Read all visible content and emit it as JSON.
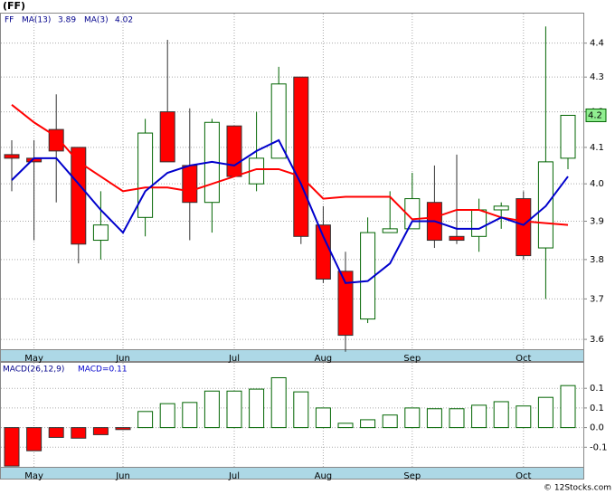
{
  "title": "(FF)",
  "footer": "© 12Stocks.com",
  "chart_data": [
    {
      "type": "candlestick",
      "legend_symbol": "FF",
      "categories": [
        null,
        "May",
        null,
        null,
        null,
        "Jun",
        null,
        null,
        null,
        null,
        "Jul",
        null,
        null,
        null,
        "Aug",
        null,
        null,
        null,
        "Sep",
        null,
        null,
        null,
        null,
        "Oct",
        null,
        null
      ],
      "open": [
        4.08,
        4.07,
        4.15,
        4.1,
        3.85,
        null,
        3.91,
        4.2,
        4.05,
        3.95,
        4.16,
        4.0,
        4.07,
        4.3,
        3.89,
        3.77,
        3.65,
        3.87,
        3.88,
        3.95,
        3.86,
        3.86,
        3.93,
        3.96,
        3.83,
        4.07
      ],
      "high": [
        4.12,
        4.12,
        4.25,
        4.1,
        3.98,
        null,
        4.18,
        4.41,
        4.21,
        4.18,
        4.16,
        4.2,
        4.33,
        4.3,
        3.94,
        3.82,
        3.91,
        3.98,
        4.03,
        4.05,
        4.08,
        3.96,
        3.95,
        3.98,
        4.45,
        4.19
      ],
      "low": [
        3.98,
        3.85,
        3.95,
        3.79,
        3.8,
        null,
        3.86,
        4.06,
        3.85,
        3.87,
        4.02,
        3.98,
        4.07,
        3.84,
        3.74,
        3.57,
        3.64,
        3.87,
        3.88,
        3.83,
        3.84,
        3.82,
        3.88,
        3.8,
        3.7,
        4.04
      ],
      "close": [
        4.07,
        4.06,
        4.09,
        3.84,
        3.89,
        null,
        4.14,
        4.06,
        3.95,
        4.17,
        4.02,
        4.07,
        4.28,
        3.86,
        3.75,
        3.61,
        3.87,
        3.88,
        3.96,
        3.85,
        3.85,
        3.93,
        3.94,
        3.81,
        4.06,
        4.19
      ],
      "up_color": "#006400",
      "down_color": "#ff0000",
      "series": [
        {
          "name": "MA(13)",
          "last": 3.89,
          "color": "#ff0000",
          "values": [
            4.22,
            4.17,
            4.13,
            4.06,
            4.02,
            3.98,
            3.99,
            3.99,
            3.98,
            4.0,
            4.02,
            4.04,
            4.04,
            4.02,
            3.96,
            3.965,
            3.965,
            3.965,
            3.905,
            3.91,
            3.93,
            3.93,
            3.91,
            3.9,
            3.895,
            3.89
          ]
        },
        {
          "name": "MA(3)",
          "last": 4.02,
          "color": "#0000cc",
          "values": [
            4.01,
            4.07,
            4.07,
            4.0,
            3.93,
            3.87,
            3.98,
            4.03,
            4.05,
            4.06,
            4.05,
            4.09,
            4.12,
            4.0,
            3.86,
            3.74,
            3.745,
            3.79,
            3.9,
            3.9,
            3.88,
            3.88,
            3.91,
            3.89,
            3.94,
            4.02
          ]
        }
      ],
      "price_tag": {
        "value": 4.19,
        "label": "4.2"
      },
      "ylog": true,
      "ylim": [
        3.576,
        4.489
      ],
      "yticks": [
        3.6,
        3.7,
        3.8,
        3.9,
        {
          "value": 4.0,
          "label": "4.0"
        },
        4.1,
        4.2,
        4.3,
        4.4
      ],
      "grid": true
    },
    {
      "type": "bar",
      "title": "MACD(26,12,9)",
      "legend_label": "MACD=0.11",
      "categories": [
        null,
        "May",
        null,
        null,
        null,
        "Jun",
        null,
        null,
        null,
        null,
        "Jul",
        null,
        null,
        null,
        "Aug",
        null,
        null,
        null,
        "Sep",
        null,
        null,
        null,
        null,
        "Oct",
        null,
        null
      ],
      "values": [
        -0.098,
        -0.059,
        -0.025,
        -0.027,
        -0.018,
        -0.005,
        0.041,
        0.061,
        0.064,
        0.093,
        0.093,
        0.098,
        0.127,
        0.091,
        0.05,
        0.011,
        0.02,
        0.032,
        0.05,
        0.048,
        0.048,
        0.057,
        0.066,
        0.055,
        0.077,
        0.107
      ],
      "up_color": "#006400",
      "down_color": "#ff0000",
      "ylim": [
        -0.1,
        0.165
      ],
      "yticks": [
        {
          "value": -0.05,
          "label": "-0.1"
        },
        {
          "value": 0,
          "label": "0.0"
        },
        {
          "value": 0.05,
          "label": "0.1"
        },
        0.1
      ],
      "grid": true
    }
  ]
}
